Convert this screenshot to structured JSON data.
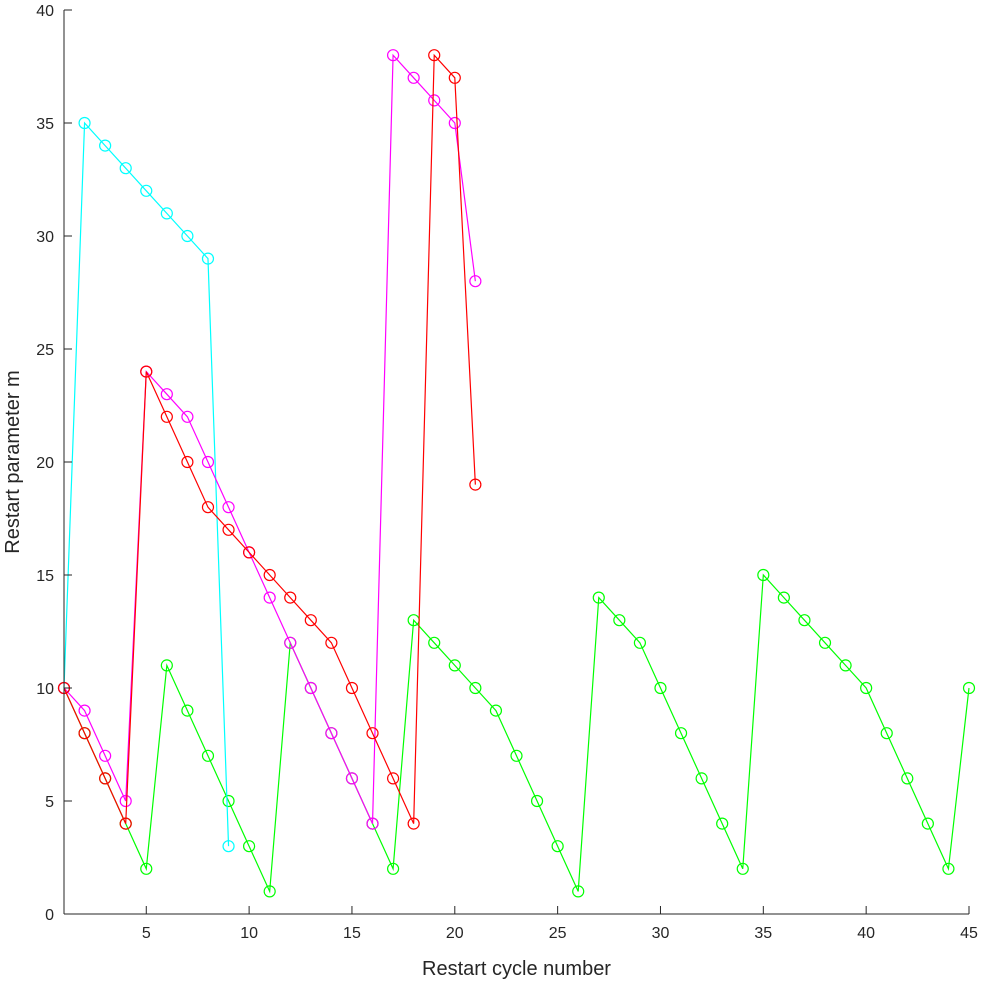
{
  "chart_data": {
    "type": "line",
    "title": "",
    "xlabel": "Restart cycle number",
    "ylabel": "Restart parameter m",
    "xlim": [
      1,
      45
    ],
    "ylim": [
      0,
      40
    ],
    "xticks": [
      5,
      10,
      15,
      20,
      25,
      30,
      35,
      40,
      45
    ],
    "yticks": [
      0,
      5,
      10,
      15,
      20,
      25,
      30,
      35,
      40
    ],
    "grid": false,
    "legend": "none",
    "marker": "circle-open",
    "series": [
      {
        "color": "#00FF00",
        "x": [
          1,
          2,
          3,
          4,
          5,
          6,
          7,
          8,
          9,
          10,
          11,
          12,
          13,
          14,
          15,
          16,
          17,
          18,
          19,
          20,
          21,
          22,
          23,
          24,
          25,
          26,
          27,
          28,
          29,
          30,
          31,
          32,
          33,
          34,
          35,
          36,
          37,
          38,
          39,
          40,
          41,
          42,
          43,
          44,
          45
        ],
        "y": [
          10,
          8,
          6,
          4,
          2,
          11,
          9,
          7,
          5,
          3,
          1,
          12,
          10,
          8,
          6,
          4,
          2,
          13,
          12,
          11,
          10,
          9,
          7,
          5,
          3,
          1,
          14,
          13,
          12,
          10,
          8,
          6,
          4,
          2,
          15,
          14,
          13,
          12,
          11,
          10,
          8,
          6,
          4,
          2,
          10
        ]
      },
      {
        "color": "#00FFFF",
        "x": [
          1,
          2,
          3,
          4,
          5,
          6,
          7,
          8,
          9
        ],
        "y": [
          10,
          35,
          34,
          33,
          32,
          31,
          30,
          29,
          3
        ]
      },
      {
        "color": "#FF00FF",
        "x": [
          1,
          2,
          3,
          4,
          5,
          6,
          7,
          8,
          9,
          10,
          11,
          12,
          13,
          14,
          15,
          16,
          17,
          18,
          19,
          20,
          21
        ],
        "y": [
          10,
          9,
          7,
          5,
          24,
          23,
          22,
          20,
          18,
          16,
          14,
          12,
          10,
          8,
          6,
          4,
          38,
          37,
          36,
          35,
          28
        ]
      },
      {
        "color": "#FF0000",
        "x": [
          1,
          2,
          3,
          4,
          5,
          6,
          7,
          8,
          9,
          10,
          11,
          12,
          13,
          14,
          15,
          16,
          17,
          18,
          19,
          20,
          21
        ],
        "y": [
          10,
          8,
          6,
          4,
          24,
          22,
          20,
          18,
          17,
          16,
          15,
          14,
          13,
          12,
          10,
          8,
          6,
          4,
          38,
          37,
          19
        ]
      }
    ]
  }
}
